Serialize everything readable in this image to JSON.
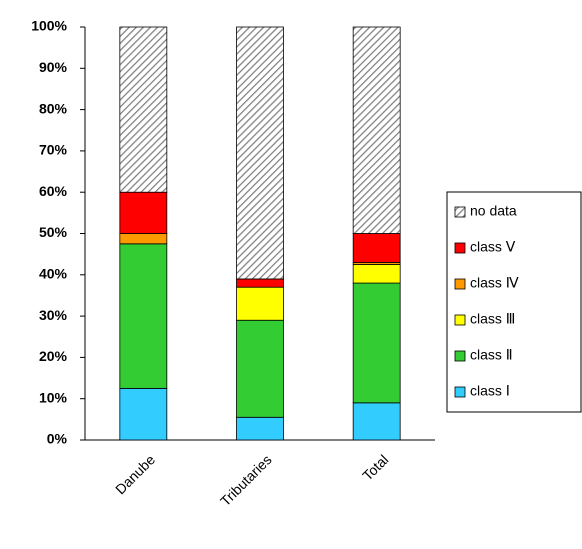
{
  "chart_data": {
    "type": "stacked_bar",
    "categories": [
      "Danube",
      "Tributaries",
      "Total"
    ],
    "series": [
      {
        "name": "class Ⅰ",
        "color": "#33ccff",
        "values": [
          12.5,
          5.5,
          9
        ]
      },
      {
        "name": "class Ⅱ",
        "color": "#33cc33",
        "values": [
          35,
          23.5,
          29
        ]
      },
      {
        "name": "class Ⅲ",
        "color": "#ffff00",
        "values": [
          0,
          8,
          4.5
        ]
      },
      {
        "name": "class Ⅳ",
        "color": "#ff9900",
        "values": [
          2.5,
          0,
          0.5
        ]
      },
      {
        "name": "class Ⅴ",
        "color": "#ff0000",
        "values": [
          10,
          2,
          7
        ]
      },
      {
        "name": "no data",
        "color": "#808080",
        "values": [
          40,
          61,
          50
        ]
      }
    ],
    "ylim": [
      0,
      100
    ],
    "yticks": [
      {
        "value": 0,
        "label": "0%"
      },
      {
        "value": 10,
        "label": "10%"
      },
      {
        "value": 20,
        "label": "20%"
      },
      {
        "value": 30,
        "label": "30%"
      },
      {
        "value": 40,
        "label": "40%"
      },
      {
        "value": 50,
        "label": "50%"
      },
      {
        "value": 60,
        "label": "60%"
      },
      {
        "value": 70,
        "label": "70%"
      },
      {
        "value": 80,
        "label": "80%"
      },
      {
        "value": 90,
        "label": "90%"
      },
      {
        "value": 100,
        "label": "100%"
      }
    ],
    "grid": false
  }
}
